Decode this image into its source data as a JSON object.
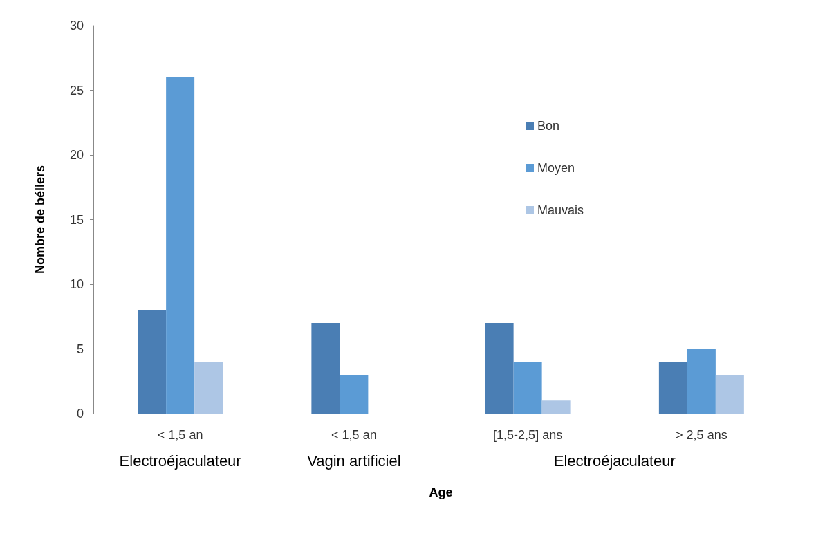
{
  "chart_data": {
    "type": "bar",
    "xlabel": "Age",
    "ylabel": "Nombre de béliers",
    "categories": [
      "< 1,5 an",
      "< 1,5 an",
      "[1,5-2,5] ans",
      "> 2,5 ans"
    ],
    "series": [
      {
        "name": "Bon",
        "color": "#4a7eb4",
        "values": [
          8,
          7,
          7,
          4
        ]
      },
      {
        "name": "Moyen",
        "color": "#5b9bd5",
        "values": [
          26,
          3,
          4,
          5
        ]
      },
      {
        "name": "Mauvais",
        "color": "#adc6e5",
        "values": [
          4,
          0,
          1,
          3
        ]
      }
    ],
    "annotations": [
      "Electroéjaculateur",
      "Vagin artificiel",
      "Electroéjaculateur"
    ],
    "ylim": [
      0,
      30
    ],
    "yticks": [
      0,
      5,
      10,
      15,
      20,
      25,
      30
    ],
    "grid": false,
    "legend": "top right"
  }
}
